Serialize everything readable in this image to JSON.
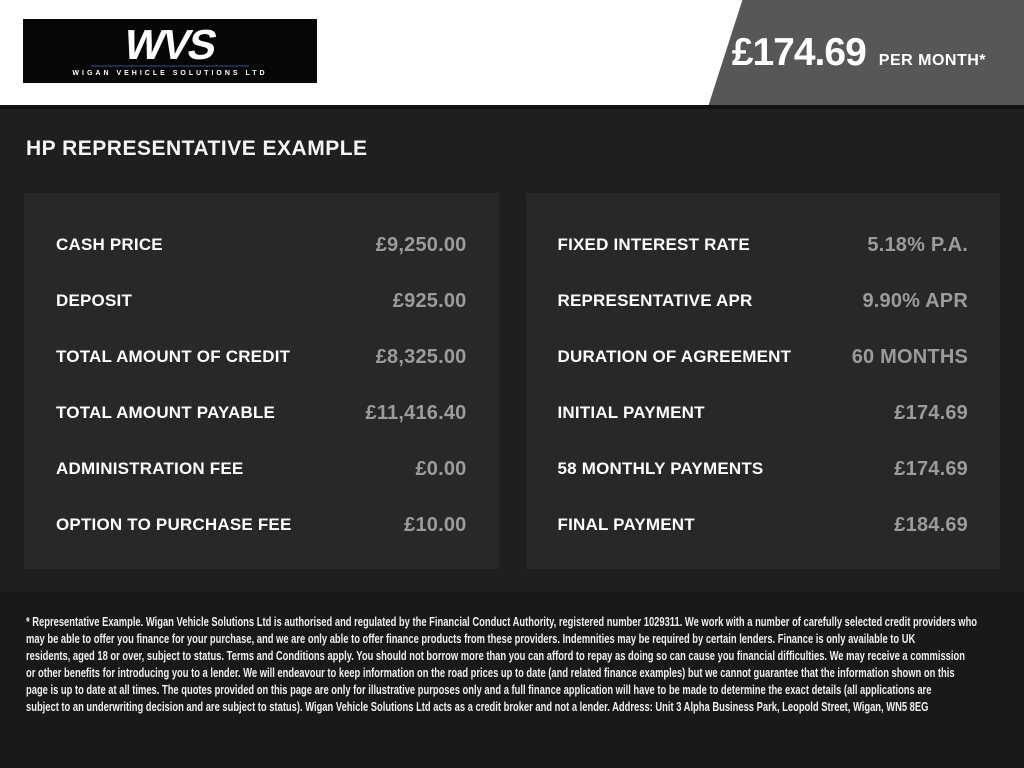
{
  "header": {
    "logo": {
      "brand": "WVS",
      "subtitle": "WIGAN VEHICLE SOLUTIONS LTD"
    },
    "price_banner": {
      "amount": "£174.69",
      "period": "PER MONTH*"
    }
  },
  "main": {
    "title": "HP REPRESENTATIVE EXAMPLE",
    "left_panel": {
      "rows": [
        {
          "label": "CASH PRICE",
          "value": "£9,250.00"
        },
        {
          "label": "DEPOSIT",
          "value": "£925.00"
        },
        {
          "label": "TOTAL AMOUNT OF CREDIT",
          "value": "£8,325.00"
        },
        {
          "label": "TOTAL AMOUNT PAYABLE",
          "value": "£11,416.40"
        },
        {
          "label": "ADMINISTRATION FEE",
          "value": "£0.00"
        },
        {
          "label": "OPTION TO PURCHASE FEE",
          "value": "£10.00"
        }
      ]
    },
    "right_panel": {
      "rows": [
        {
          "label": "FIXED INTEREST RATE",
          "value": "5.18% P.A."
        },
        {
          "label": "REPRESENTATIVE APR",
          "value": "9.90% APR"
        },
        {
          "label": "DURATION OF AGREEMENT",
          "value": "60 MONTHS"
        },
        {
          "label": "INITIAL PAYMENT",
          "value": "£174.69"
        },
        {
          "label": "58 MONTHLY PAYMENTS",
          "value": "£174.69"
        },
        {
          "label": "FINAL PAYMENT",
          "value": "£184.69"
        }
      ]
    }
  },
  "disclaimer": {
    "lines": [
      "* Representative Example. Wigan Vehicle Solutions Ltd is authorised and regulated by the Financial Conduct Authority, registered number 1029311. We work with a number of carefully selected credit providers who",
      "may be able to offer you finance for your purchase, and we are only able to offer finance products from these providers. Indemnities may be required by certain lenders. Finance is only available to UK",
      "residents, aged 18 or over, subject to status. Terms and Conditions apply. You should not borrow more than you can afford to repay as doing so can cause you financial difficulties. We may receive a commission",
      "or other benefits for introducing you to a lender. We will endeavour to keep information on the road prices up to date (and related finance examples) but we cannot guarantee that the information shown on this",
      "page is up to date at all times. The quotes provided on this page are only for illustrative purposes only and a full finance application will have to be made to determine the exact details (all applications are",
      "subject to an underwriting decision and are subject to status). Wigan Vehicle Solutions Ltd acts as a credit broker and not a lender. Address: Unit 3 Alpha Business Park, Leopold Street, Wigan, WN5 8EG"
    ]
  },
  "colors": {
    "banner_bg": "#575757",
    "page_bg": "#1f1f1f",
    "panel_bg": "#282828",
    "value_text": "#9b9b9b",
    "logo_bg": "#060606",
    "logo_underline": "#1c2b50",
    "disclaimer_bg": "#191919"
  }
}
